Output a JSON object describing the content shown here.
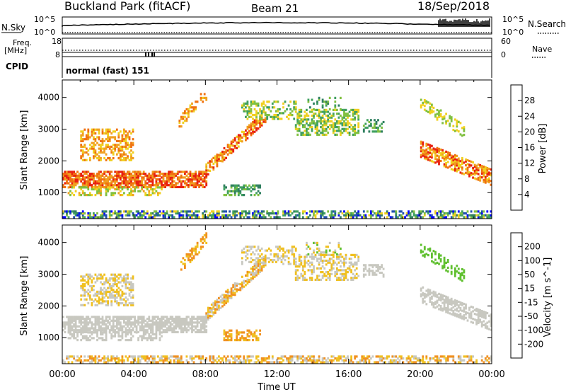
{
  "header": {
    "station": "Buckland Park (fitACF)",
    "beam": "Beam 21",
    "date": "18/Sep/2018"
  },
  "strip_panels": {
    "nsky_label": "N.Sky",
    "nsearch_label": "N.Search",
    "freq_label": "Freq.",
    "freq_unit": "[MHz]",
    "nave_label": "Nave",
    "cpid_label": "CPID",
    "cpid_text": "normal (fast) 151",
    "noise_ticks_left": [
      "10^5",
      "10^0"
    ],
    "noise_ticks_right": [
      "10^5",
      "10^0"
    ],
    "freq_ticks": [
      "18",
      "8"
    ],
    "nave_ticks": [
      "60",
      "0"
    ]
  },
  "colors": {
    "power_scale": [
      "#0000ff",
      "#2050b0",
      "#308060",
      "#40a060",
      "#80c040",
      "#f0d020",
      "#f0a020",
      "#f07010",
      "#e82010"
    ],
    "velocity_scale": [
      "#2020b0",
      "#3050a0",
      "#208040",
      "#60c030",
      "#c8c8c0",
      "#f0c020",
      "#f09020",
      "#f06010",
      "#e01010"
    ]
  },
  "chart_data": [
    {
      "type": "heatmap",
      "panel": "power",
      "ylabel": "Slant Range [km]",
      "xlabel": "",
      "xlim": [
        "00:00",
        "24:00"
      ],
      "ylim": [
        180,
        4550
      ],
      "y_ticks": [
        "4000",
        "3000",
        "2000",
        "1000"
      ],
      "colorbar": {
        "label": "Power [dB]",
        "ticks": [
          "28",
          "24",
          "20",
          "16",
          "12",
          "8",
          "4"
        ],
        "range": [
          0,
          32
        ]
      },
      "echo_regions_approx": [
        {
          "time": "00:00-08:00",
          "range_km": "1100-1700",
          "power_db": "20-30"
        },
        {
          "time": "08:00-11:30",
          "range_km": "1500-3500",
          "power_db": "16-28"
        },
        {
          "time": "13:00-18:00",
          "range_km": "2800-3600",
          "power_db": "10-20"
        },
        {
          "time": "09:00-11:00",
          "range_km": "900-1200",
          "power_db": "8-14"
        },
        {
          "time": "20:00-24:00",
          "range_km": "1300-2600",
          "power_db": "20-30"
        },
        {
          "time": "20:00-22:30",
          "range_km": "3000-4000",
          "power_db": "14-20"
        },
        {
          "time": "00:00-24:00",
          "range_km": "200-400",
          "power_db": "4-20"
        }
      ]
    },
    {
      "type": "heatmap",
      "panel": "velocity",
      "ylabel": "Slant Range [km]",
      "xlabel": "Time UT",
      "x_ticks": [
        "00:00",
        "04:00",
        "08:00",
        "12:00",
        "16:00",
        "20:00",
        "00:00"
      ],
      "ylim": [
        180,
        4550
      ],
      "y_ticks": [
        "4000",
        "3000",
        "2000",
        "1000"
      ],
      "colorbar": {
        "label": "Velocity [m s^-1]",
        "ticks": [
          "200",
          "100",
          "50",
          "15",
          "-15",
          "-50",
          "-100",
          "-200"
        ],
        "range": [
          -250,
          250
        ]
      },
      "echo_regions_approx": [
        {
          "time": "00:00-08:00",
          "range_km": "1100-1700",
          "velocity": "-15 to 15"
        },
        {
          "time": "08:00-11:30",
          "range_km": "1500-3500",
          "velocity": "-50 to 15"
        },
        {
          "time": "00:00-24:00",
          "range_km": "200-400",
          "velocity": "-50 to -15"
        },
        {
          "time": "20:00-22:00",
          "range_km": "3300-4000",
          "velocity": "15 to 50"
        }
      ]
    }
  ]
}
